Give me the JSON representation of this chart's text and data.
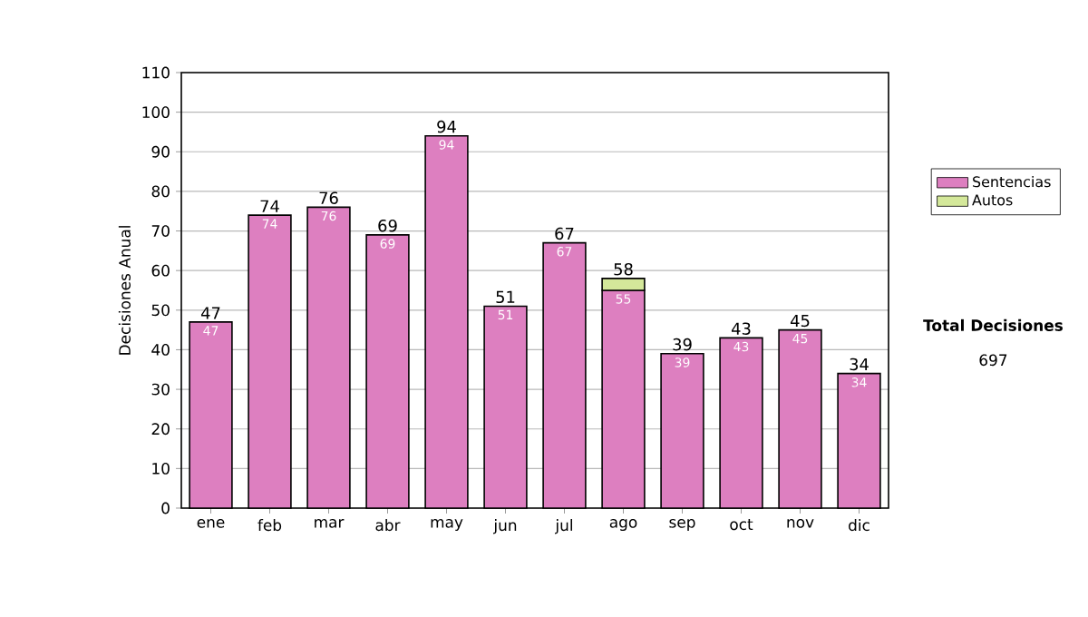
{
  "chart_data": {
    "type": "bar",
    "stacked": true,
    "ylabel": "Decisiones Anual",
    "categories": [
      "ene",
      "feb",
      "mar",
      "abr",
      "may",
      "jun",
      "jul",
      "ago",
      "sep",
      "oct",
      "nov",
      "dic"
    ],
    "series": [
      {
        "name": "Sentencias",
        "color": "#dd7fc0",
        "values": [
          47,
          74,
          76,
          69,
          94,
          51,
          67,
          55,
          39,
          43,
          45,
          34
        ],
        "value_labels": [
          "47",
          "74",
          "76",
          "69",
          "94",
          "51",
          "67",
          "55",
          "39",
          "43",
          "45",
          "34"
        ]
      },
      {
        "name": "Autos",
        "color": "#d4e89a",
        "values": [
          null,
          null,
          null,
          null,
          null,
          null,
          null,
          3,
          null,
          null,
          null,
          null
        ]
      }
    ],
    "totals": [
      "47",
      "74",
      "76",
      "69",
      "94",
      "51",
      "67",
      "58",
      "39",
      "43",
      "45",
      "34"
    ],
    "ylim": [
      0,
      110
    ],
    "yticks": [
      0,
      10,
      20,
      30,
      40,
      50,
      60,
      70,
      80,
      90,
      100,
      110
    ],
    "grid": "y",
    "legend": "right",
    "annotations": [
      "Total Decisiones",
      "697"
    ]
  }
}
